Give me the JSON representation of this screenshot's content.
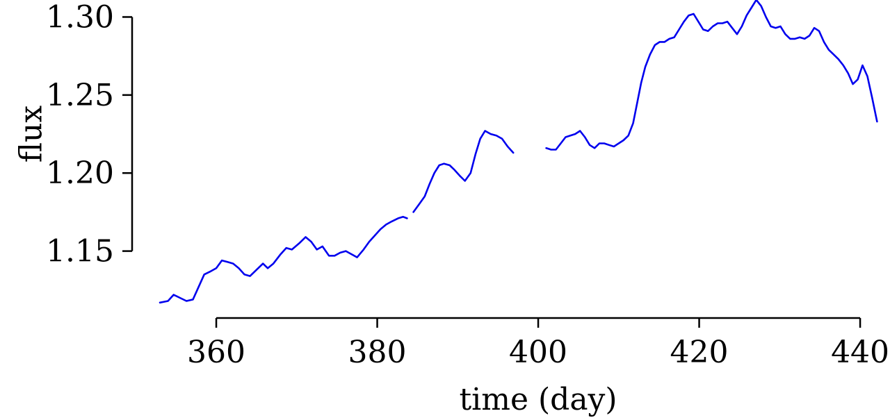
{
  "chart_data": {
    "type": "line",
    "title": "",
    "xlabel": "time (day)",
    "ylabel": "flux",
    "xlim": [
      353,
      442.5
    ],
    "ylim": [
      1.108,
      1.31
    ],
    "x_ticks": [
      360,
      380,
      400,
      420,
      440
    ],
    "x_tick_labels": [
      "360",
      "380",
      "400",
      "420",
      "440"
    ],
    "y_ticks": [
      1.15,
      1.2,
      1.25,
      1.3
    ],
    "y_tick_labels": [
      "1.15",
      "1.20",
      "1.25",
      "1.30"
    ],
    "grid": false,
    "legend": "none",
    "colors": {
      "line": "#0000ee",
      "axis": "#000000"
    },
    "series": [
      {
        "segments": [
          {
            "x": [
              353.0,
              354.0,
              354.7,
              355.5,
              356.3,
              357.1,
              357.8,
              358.5,
              359.3,
              360.0,
              360.7,
              361.4,
              362.1,
              362.8,
              363.5,
              364.2,
              365.0,
              365.8,
              366.4,
              367.1,
              368.0,
              368.7,
              369.4,
              370.3,
              371.1,
              371.8,
              372.5,
              373.2,
              374.0,
              374.7,
              375.4,
              376.1,
              376.8,
              377.5,
              378.3,
              379.0,
              379.7,
              380.4,
              381.1,
              381.8,
              382.6,
              383.2,
              383.7
            ],
            "y": [
              1.117,
              1.118,
              1.122,
              1.12,
              1.118,
              1.119,
              1.127,
              1.135,
              1.137,
              1.139,
              1.144,
              1.143,
              1.142,
              1.139,
              1.135,
              1.134,
              1.138,
              1.142,
              1.139,
              1.142,
              1.148,
              1.152,
              1.151,
              1.155,
              1.159,
              1.156,
              1.151,
              1.153,
              1.147,
              1.147,
              1.149,
              1.15,
              1.148,
              1.146,
              1.151,
              1.156,
              1.16,
              1.164,
              1.167,
              1.169,
              1.171,
              1.172,
              1.171
            ]
          },
          {
            "x": [
              384.5,
              385.2,
              385.9,
              386.5,
              387.1,
              387.7,
              388.3,
              389.0,
              389.6,
              390.3,
              390.9,
              391.6,
              392.2,
              392.8,
              393.4,
              394.1,
              394.8,
              395.5,
              396.2,
              396.9
            ],
            "y": [
              1.175,
              1.18,
              1.185,
              1.193,
              1.2,
              1.205,
              1.206,
              1.205,
              1.202,
              1.198,
              1.195,
              1.2,
              1.212,
              1.222,
              1.227,
              1.225,
              1.224,
              1.222,
              1.217,
              1.213
            ]
          },
          {
            "x": [
              401.0,
              401.6,
              402.2,
              402.8,
              403.4,
              404.0,
              404.6,
              405.2,
              405.8,
              406.4,
              407.0,
              407.6,
              408.2,
              408.8,
              409.4,
              410.0,
              410.6,
              411.2,
              411.8,
              412.3,
              412.8,
              413.3,
              413.9,
              414.5,
              415.1,
              415.7,
              416.3,
              416.9,
              417.5,
              418.1,
              418.7,
              419.3,
              419.9,
              420.5,
              421.1,
              421.7,
              422.3,
              422.9,
              423.5,
              424.1,
              424.7,
              425.3,
              425.9,
              426.5,
              427.1,
              427.7,
              428.3,
              428.9,
              429.5,
              430.1,
              430.7,
              431.3,
              431.9,
              432.5,
              433.1,
              433.7,
              434.3,
              434.9,
              435.5,
              436.1,
              436.7,
              437.3,
              437.9,
              438.5,
              439.1,
              439.7,
              440.3,
              440.9,
              441.5,
              442.1
            ],
            "y": [
              1.216,
              1.215,
              1.215,
              1.219,
              1.223,
              1.224,
              1.225,
              1.227,
              1.223,
              1.218,
              1.216,
              1.219,
              1.219,
              1.218,
              1.217,
              1.219,
              1.221,
              1.224,
              1.232,
              1.245,
              1.258,
              1.268,
              1.276,
              1.282,
              1.284,
              1.284,
              1.286,
              1.287,
              1.292,
              1.297,
              1.301,
              1.302,
              1.297,
              1.292,
              1.291,
              1.294,
              1.296,
              1.296,
              1.297,
              1.293,
              1.289,
              1.294,
              1.301,
              1.306,
              1.311,
              1.307,
              1.3,
              1.294,
              1.293,
              1.294,
              1.289,
              1.286,
              1.286,
              1.287,
              1.286,
              1.288,
              1.293,
              1.291,
              1.284,
              1.279,
              1.276,
              1.273,
              1.269,
              1.264,
              1.257,
              1.26,
              1.269,
              1.262,
              1.248,
              1.233
            ]
          }
        ]
      }
    ]
  }
}
